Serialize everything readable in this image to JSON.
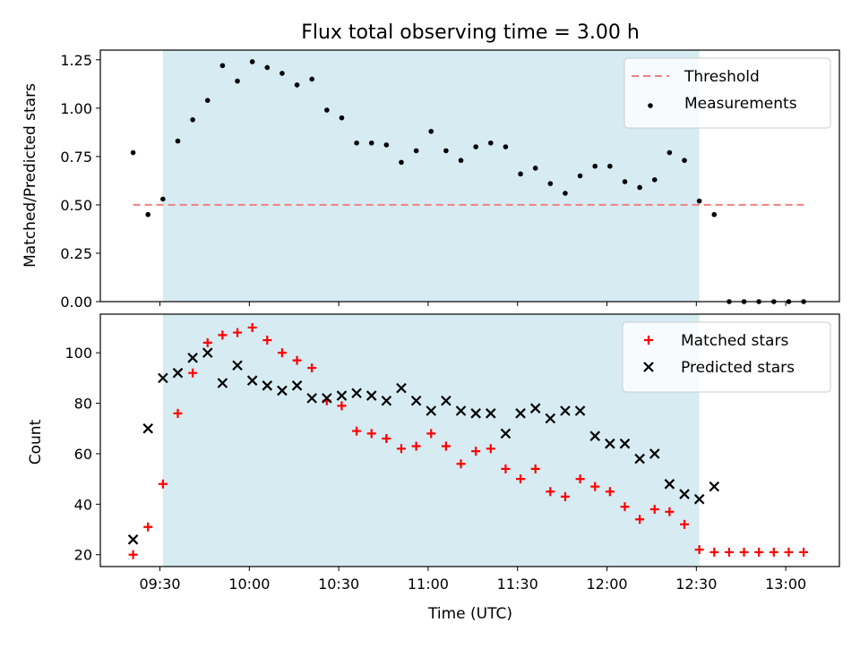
{
  "chart_data": {
    "type": "scatter",
    "title": "Flux total observing time = 3.00 h",
    "xlabel": "Time (UTC)",
    "x_ticks": [
      "09:30",
      "10:00",
      "10:30",
      "11:00",
      "11:30",
      "12:00",
      "12:30",
      "13:00"
    ],
    "x_range": [
      "09:10",
      "13:18"
    ],
    "time_x": [
      "09:21",
      "09:26",
      "09:31",
      "09:36",
      "09:41",
      "09:46",
      "09:51",
      "09:56",
      "10:01",
      "10:06",
      "10:11",
      "10:16",
      "10:21",
      "10:26",
      "10:31",
      "10:36",
      "10:41",
      "10:46",
      "10:51",
      "10:56",
      "11:01",
      "11:06",
      "11:11",
      "11:16",
      "11:21",
      "11:26",
      "11:31",
      "11:36",
      "11:41",
      "11:46",
      "11:51",
      "11:56",
      "12:01",
      "12:06",
      "12:11",
      "12:16",
      "12:21",
      "12:26",
      "12:31",
      "12:36",
      "12:41",
      "12:46",
      "12:51",
      "12:56",
      "13:01",
      "13:06"
    ],
    "shaded_region": {
      "start": "09:31",
      "end": "12:31",
      "color": "#add8e6"
    },
    "legend_position": "top-right",
    "panels": [
      {
        "ylabel": "Matched/Predicted stars",
        "y_ticks": [
          "0.00",
          "0.25",
          "0.50",
          "0.75",
          "1.00",
          "1.25"
        ],
        "ylim": [
          0.0,
          1.3
        ],
        "series": [
          {
            "name": "Threshold",
            "kind": "dashed-line",
            "color": "#f08080",
            "x_start": "09:21",
            "x_end": "13:06",
            "value": 0.5
          },
          {
            "name": "Measurements",
            "kind": "dot",
            "color": "#000000",
            "values": [
              0.77,
              0.45,
              0.53,
              0.83,
              0.94,
              1.04,
              1.22,
              1.14,
              1.24,
              1.21,
              1.18,
              1.12,
              1.15,
              0.99,
              0.95,
              0.82,
              0.82,
              0.81,
              0.72,
              0.78,
              0.88,
              0.78,
              0.73,
              0.8,
              0.82,
              0.8,
              0.66,
              0.69,
              0.61,
              0.56,
              0.65,
              0.7,
              0.7,
              0.62,
              0.59,
              0.63,
              0.77,
              0.73,
              0.52,
              0.45,
              0.0,
              0.0,
              0.0,
              0.0,
              0.0,
              0.0
            ]
          }
        ]
      },
      {
        "ylabel": "Count",
        "y_ticks": [
          "20",
          "40",
          "60",
          "80",
          "100"
        ],
        "ylim": [
          15.3,
          115.3
        ],
        "series": [
          {
            "name": "Matched stars",
            "kind": "plus",
            "color": "#ff0000",
            "values": [
              20,
              31,
              48,
              76,
              92,
              104,
              107,
              108,
              110,
              105,
              100,
              97,
              94,
              81,
              79,
              69,
              68,
              66,
              62,
              63,
              68,
              63,
              56,
              61,
              62,
              54,
              50,
              54,
              45,
              43,
              50,
              47,
              45,
              39,
              34,
              38,
              37,
              32,
              22,
              21,
              21,
              21,
              21,
              21,
              21,
              21
            ]
          },
          {
            "name": "Predicted stars",
            "kind": "cross",
            "color": "#000000",
            "values": [
              26,
              70,
              90,
              92,
              98,
              100,
              88,
              95,
              89,
              87,
              85,
              87,
              82,
              82,
              83,
              84,
              83,
              81,
              86,
              81,
              77,
              81,
              77,
              76,
              76,
              68,
              76,
              78,
              74,
              77,
              77,
              67,
              64,
              64,
              58,
              60,
              48,
              44,
              42,
              47,
              null,
              null,
              null,
              null,
              null,
              null
            ]
          }
        ]
      }
    ]
  }
}
